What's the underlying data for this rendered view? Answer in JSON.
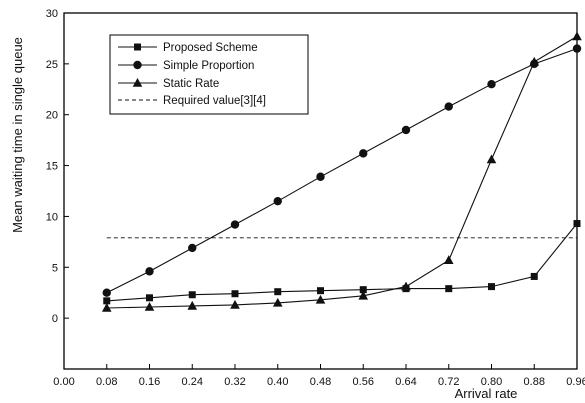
{
  "chart_data": {
    "type": "line",
    "xlabel": "Arrival rate",
    "ylabel": "Mean waiting time in single queue",
    "xlim": [
      0.0,
      0.96
    ],
    "ylim": [
      -5,
      30
    ],
    "x_ticks": [
      "0.00",
      "0.08",
      "0.16",
      "0.24",
      "0.32",
      "0.40",
      "0.48",
      "0.56",
      "0.64",
      "0.72",
      "0.80",
      "0.88",
      "0.96"
    ],
    "y_ticks": [
      "0",
      "5",
      "10",
      "15",
      "20",
      "25",
      "30"
    ],
    "x": [
      0.08,
      0.16,
      0.24,
      0.32,
      0.4,
      0.48,
      0.56,
      0.64,
      0.72,
      0.8,
      0.88,
      0.96
    ],
    "series": [
      {
        "name": "Proposed Scheme",
        "marker": "square",
        "values": [
          1.7,
          2.0,
          2.3,
          2.4,
          2.6,
          2.7,
          2.8,
          2.9,
          2.9,
          3.1,
          4.1,
          9.3
        ]
      },
      {
        "name": "Simple Proportion",
        "marker": "circle",
        "values": [
          2.5,
          4.6,
          6.9,
          9.2,
          11.5,
          13.9,
          16.2,
          18.5,
          20.8,
          23.0,
          25.0,
          26.5
        ]
      },
      {
        "name": "Static Rate",
        "marker": "triangle",
        "values": [
          1.0,
          1.1,
          1.2,
          1.3,
          1.5,
          1.8,
          2.2,
          3.1,
          5.7,
          15.6,
          25.2,
          27.7
        ]
      },
      {
        "name": "Required value[3][4]",
        "marker": "none",
        "style": "dashed",
        "x": [
          0.08,
          0.96
        ],
        "values": [
          7.9,
          7.9
        ]
      }
    ],
    "legend_position": "top-left"
  }
}
